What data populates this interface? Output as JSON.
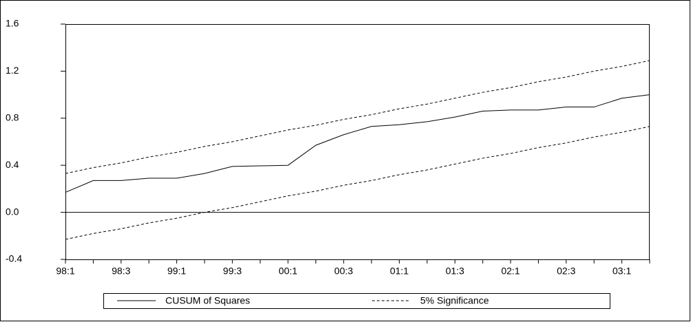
{
  "chart_data": {
    "type": "line",
    "categories": [
      "98:1",
      null,
      "98:3",
      null,
      "99:1",
      null,
      "99:3",
      null,
      "00:1",
      null,
      "00:3",
      null,
      "01:1",
      null,
      "01:3",
      null,
      "02:1",
      null,
      "02:3",
      null,
      "03:1",
      null
    ],
    "series": [
      {
        "name": "CUSUM of Squares",
        "color": "#000000",
        "dash": false,
        "values": [
          0.17,
          0.27,
          0.27,
          0.29,
          0.29,
          0.33,
          0.39,
          0.395,
          0.4,
          0.57,
          0.66,
          0.73,
          0.745,
          0.77,
          0.81,
          0.86,
          0.87,
          0.87,
          0.895,
          0.895,
          0.97,
          1.0
        ]
      },
      {
        "name": "5% Significance",
        "color": "#000000",
        "dash": true,
        "values": [
          0.33,
          0.38,
          0.42,
          0.47,
          0.51,
          0.56,
          0.6,
          0.65,
          0.7,
          0.74,
          0.79,
          0.83,
          0.88,
          0.92,
          0.97,
          1.02,
          1.06,
          1.11,
          1.15,
          1.2,
          1.24,
          1.29
        ]
      },
      {
        "color": "#000000",
        "dash": true,
        "values": [
          -0.23,
          -0.18,
          -0.14,
          -0.09,
          -0.05,
          0.0,
          0.04,
          0.09,
          0.14,
          0.18,
          0.23,
          0.27,
          0.32,
          0.36,
          0.41,
          0.46,
          0.5,
          0.55,
          0.59,
          0.64,
          0.68,
          0.73
        ]
      }
    ],
    "ylim": [
      -0.4,
      1.6
    ],
    "yticks": [
      -0.4,
      {
        "value": 0,
        "label": "0.0"
      },
      0.4,
      0.8,
      1.2,
      1.6
    ],
    "zero_line": true,
    "legend": "bottom"
  }
}
